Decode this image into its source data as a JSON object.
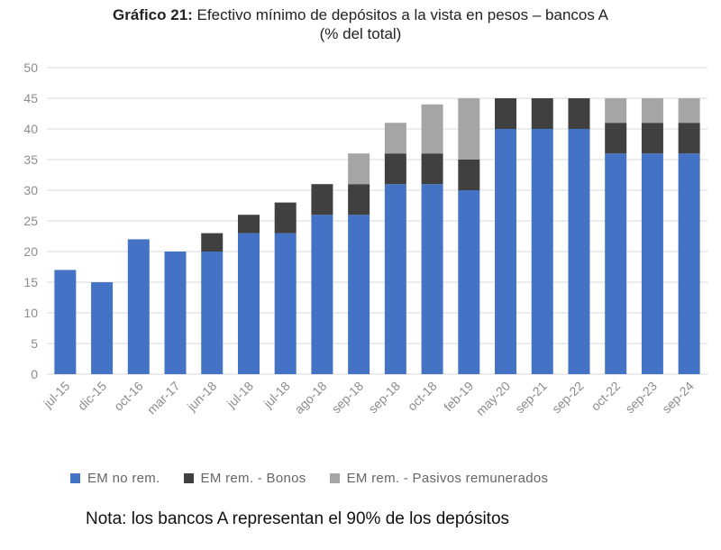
{
  "title": {
    "label": "Gráfico 21:",
    "text": "Efectivo mínimo de depósitos a la vista en pesos – bancos A",
    "subtitle": "(% del total)"
  },
  "note": "Nota: los bancos A representan el 90% de los depósitos",
  "colors": {
    "em_no_rem": "#4472C4",
    "em_rem_bonos": "#404040",
    "em_rem_pasivos": "#A5A5A5",
    "grid": "#d9d9d9",
    "tick_text": "#8c8c8c"
  },
  "chart_data": {
    "type": "bar",
    "stacked": true,
    "categories": [
      "jul-15",
      "dic-15",
      "oct-16",
      "mar-17",
      "jun-18",
      "jul-18",
      "jul-18",
      "ago-18",
      "sep-18",
      "sep-18",
      "oct-18",
      "feb-19",
      "may-20",
      "sep-21",
      "sep-22",
      "oct-22",
      "sep-23",
      "sep-24"
    ],
    "series": [
      {
        "name": "EM no rem.",
        "values": [
          17,
          15,
          22,
          20,
          20,
          23,
          23,
          26,
          26,
          31,
          31,
          30,
          40,
          40,
          40,
          36,
          36,
          36
        ]
      },
      {
        "name": "EM rem. - Bonos",
        "values": [
          0,
          0,
          0,
          0,
          3,
          3,
          5,
          5,
          5,
          5,
          5,
          5,
          5,
          5,
          5,
          5,
          5,
          5
        ]
      },
      {
        "name": "EM rem. - Pasivos remunerados",
        "values": [
          0,
          0,
          0,
          0,
          0,
          0,
          0,
          0,
          5,
          5,
          8,
          10,
          0,
          0,
          0,
          4,
          4,
          4
        ]
      }
    ],
    "yticks": [
      "0",
      "5",
      "10",
      "15",
      "20",
      "25",
      "30",
      "35",
      "40",
      "45",
      "50"
    ],
    "ylim": [
      0,
      50
    ],
    "legend": [
      "EM no rem.",
      "EM rem. - Bonos",
      "EM rem. - Pasivos remunerados"
    ],
    "legend_position": "bottom"
  }
}
